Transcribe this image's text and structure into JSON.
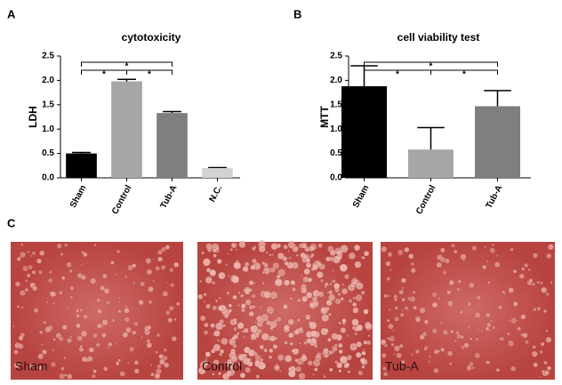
{
  "panels": [
    "A",
    "B",
    "C"
  ],
  "chart_data": [
    {
      "type": "bar",
      "title": "cytotoxicity",
      "ylabel": "LDH",
      "categories": [
        "Sham",
        "Control",
        "Tub-A",
        "N.C."
      ],
      "values": [
        0.5,
        1.98,
        1.33,
        0.2
      ],
      "errors": [
        0.02,
        0.04,
        0.03,
        0.01
      ],
      "colors": [
        "#000000",
        "#a6a6a8",
        "#7f7f7f",
        "#d2d2d2"
      ],
      "ylim": [
        0,
        2.5
      ],
      "yticks": [
        {
          "value": 0,
          "label": "0.0"
        },
        0.5,
        {
          "value": 1,
          "label": "1.0"
        },
        1.5,
        {
          "value": 2,
          "label": "2.0"
        },
        2.5
      ],
      "annotations": [
        {
          "label": "*",
          "between": [
            "Sham",
            "Control"
          ]
        },
        {
          "label": "*",
          "between": [
            "Control",
            "Tub-A"
          ]
        },
        {
          "label": "*",
          "between": [
            "Sham",
            "Tub-A"
          ]
        }
      ]
    },
    {
      "type": "bar",
      "title": "cell viability test",
      "ylabel": "MTT",
      "categories": [
        "Sham",
        "Control",
        "Tub-A"
      ],
      "values": [
        1.88,
        0.58,
        1.47
      ],
      "errors": [
        0.42,
        0.45,
        0.32
      ],
      "colors": [
        "#000000",
        "#a6a6a8",
        "#7f7f7f"
      ],
      "ylim": [
        0,
        2.5
      ],
      "yticks": [
        {
          "value": 0,
          "label": "0.0"
        },
        0.5,
        {
          "value": 1,
          "label": "1.0"
        },
        1.5,
        {
          "value": 2,
          "label": "2.0"
        },
        2.5
      ],
      "annotations": [
        {
          "label": "*",
          "between": [
            "Sham",
            "Control"
          ]
        },
        {
          "label": "*",
          "between": [
            "Control",
            "Tub-A"
          ]
        },
        {
          "label": "*",
          "between": [
            "Sham",
            "Tub-A"
          ]
        }
      ]
    }
  ],
  "images": [
    {
      "label": "Sham"
    },
    {
      "label": "Control"
    },
    {
      "label": "Tub-A"
    }
  ]
}
